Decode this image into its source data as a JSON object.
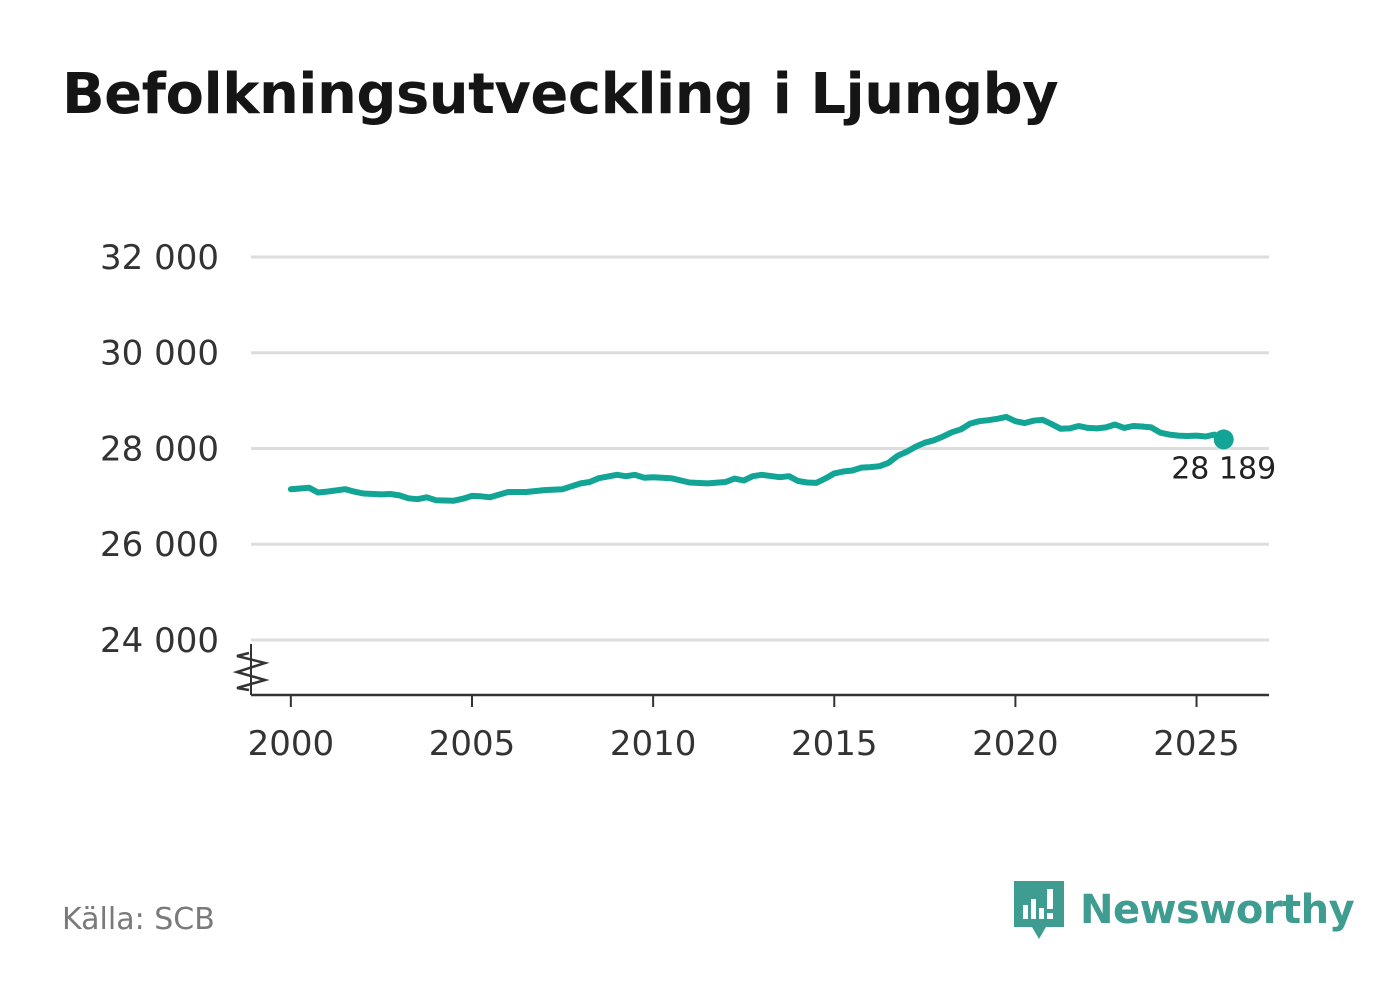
{
  "title": "Befolkningsutveckling i Ljungby",
  "source": "Källa: SCB",
  "brand": "Newsworthy",
  "colors": {
    "line": "#12a494",
    "grid": "#dddddd",
    "axis": "#333333",
    "brand": "#3f9c90"
  },
  "chart_data": {
    "type": "line",
    "title": "Befolkningsutveckling i Ljungby",
    "xlabel": "",
    "ylabel": "",
    "xlim": [
      1998.9,
      2027.0
    ],
    "ylim": [
      22850,
      32000
    ],
    "axis_break": true,
    "yticks": [
      24000,
      26000,
      28000,
      30000,
      32000
    ],
    "ytick_labels": [
      "24 000",
      "26 000",
      "28 000",
      "30 000",
      "32 000"
    ],
    "xticks": [
      2000,
      2005,
      2010,
      2015,
      2020,
      2025
    ],
    "xtick_labels": [
      "2000",
      "2005",
      "2010",
      "2015",
      "2020",
      "2025"
    ],
    "series": [
      {
        "name": "Befolkning",
        "x": [
          2000.0,
          2000.5,
          2000.75,
          2001.0,
          2001.5,
          2001.75,
          2002.0,
          2002.5,
          2002.75,
          2003.0,
          2003.25,
          2003.5,
          2003.75,
          2004.0,
          2004.5,
          2004.75,
          2005.0,
          2005.25,
          2005.5,
          2006.0,
          2006.25,
          2006.5,
          2007.0,
          2007.5,
          2008.0,
          2008.25,
          2008.5,
          2009.0,
          2009.25,
          2009.5,
          2009.75,
          2010.0,
          2010.5,
          2011.0,
          2011.5,
          2012.0,
          2012.25,
          2012.5,
          2012.75,
          2013.0,
          2013.5,
          2013.75,
          2014.0,
          2014.25,
          2014.5,
          2014.75,
          2015.0,
          2015.25,
          2015.5,
          2015.75,
          2016.0,
          2016.25,
          2016.5,
          2016.75,
          2017.0,
          2017.25,
          2017.5,
          2017.75,
          2018.0,
          2018.25,
          2018.5,
          2018.75,
          2019.0,
          2019.25,
          2019.5,
          2019.75,
          2020.0,
          2020.25,
          2020.5,
          2020.75,
          2021.0,
          2021.25,
          2021.5,
          2021.75,
          2022.0,
          2022.25,
          2022.5,
          2022.75,
          2023.0,
          2023.25,
          2023.5,
          2023.75,
          2024.0,
          2024.25,
          2024.5,
          2024.75,
          2025.0,
          2025.25,
          2025.5,
          2025.75
        ],
        "values": [
          27150,
          27180,
          27080,
          27100,
          27150,
          27100,
          27060,
          27040,
          27050,
          27020,
          26960,
          26940,
          26980,
          26920,
          26910,
          26950,
          27010,
          27000,
          26980,
          27090,
          27090,
          27090,
          27130,
          27150,
          27270,
          27300,
          27380,
          27450,
          27420,
          27450,
          27390,
          27400,
          27380,
          27290,
          27270,
          27300,
          27370,
          27330,
          27420,
          27450,
          27400,
          27420,
          27320,
          27290,
          27280,
          27370,
          27480,
          27520,
          27540,
          27600,
          27610,
          27630,
          27700,
          27850,
          27930,
          28040,
          28120,
          28170,
          28250,
          28340,
          28400,
          28520,
          28570,
          28590,
          28620,
          28660,
          28570,
          28530,
          28580,
          28600,
          28510,
          28410,
          28420,
          28470,
          28430,
          28420,
          28440,
          28500,
          28430,
          28470,
          28460,
          28440,
          28330,
          28290,
          28270,
          28260,
          28270,
          28250,
          28290,
          28189
        ]
      }
    ],
    "end_label": "28 189",
    "end_value": 28189
  }
}
